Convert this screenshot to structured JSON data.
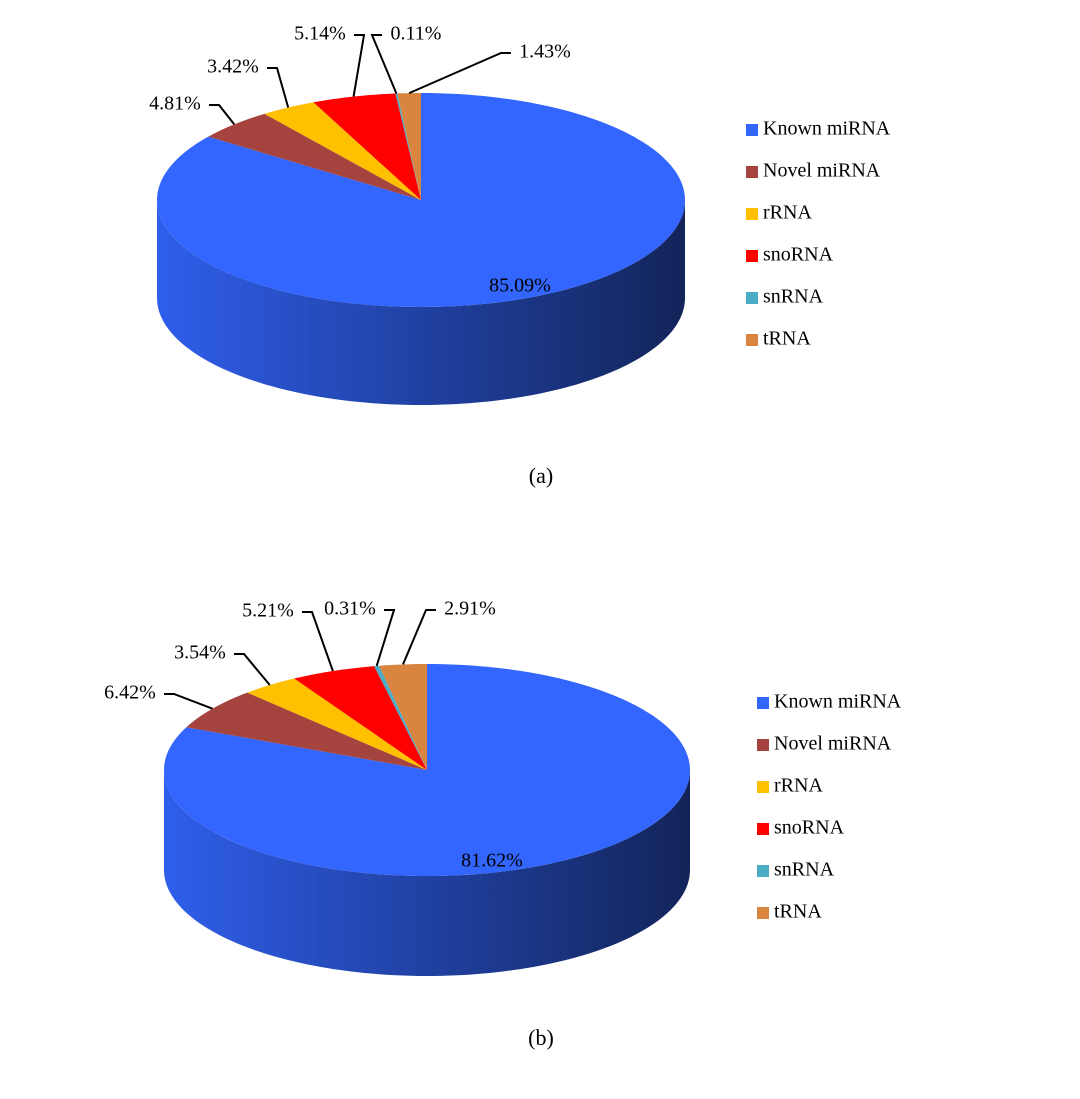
{
  "chart_data": [
    {
      "type": "pie",
      "caption": "(a)",
      "categories": [
        "Known miRNA",
        "Novel miRNA",
        "rRNA",
        "snoRNA",
        "snRNA",
        "tRNA"
      ],
      "values": [
        85.09,
        4.81,
        3.42,
        5.14,
        0.11,
        1.43
      ],
      "value_labels": [
        "85.09%",
        "4.81%",
        "3.42%",
        "5.14%",
        "0.11%",
        "1.43%"
      ],
      "colors": [
        "#3366ff",
        "#a5443f",
        "#ffc000",
        "#ff0000",
        "#4bacc6",
        "#d9843f"
      ],
      "legend": "right"
    },
    {
      "type": "pie",
      "caption": "(b)",
      "categories": [
        "Known miRNA",
        "Novel miRNA",
        "rRNA",
        "snoRNA",
        "snRNA",
        "tRNA"
      ],
      "values": [
        81.62,
        6.42,
        3.54,
        5.21,
        0.31,
        2.91
      ],
      "value_labels": [
        "81.62%",
        "6.42%",
        "3.54%",
        "5.21%",
        "0.31%",
        "2.91%"
      ],
      "colors": [
        "#3366ff",
        "#a5443f",
        "#ffc000",
        "#ff0000",
        "#4bacc6",
        "#d9843f"
      ],
      "legend": "right"
    }
  ]
}
